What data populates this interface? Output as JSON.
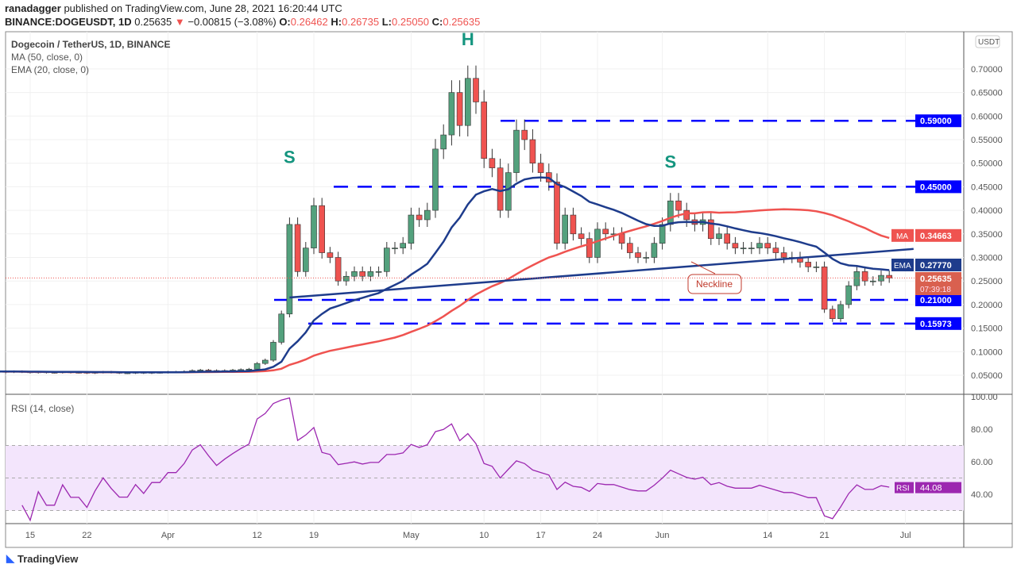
{
  "header": {
    "publisher": "ranadagger",
    "published_text": "published on TradingView.com, June 28, 2021 16:20:44 UTC",
    "symbol": "BINANCE:DOGEUSDT, 1D",
    "last": "0.25635",
    "change": "−0.00815 (−3.08%)",
    "o_label": "O:",
    "o": "0.26462",
    "h_label": "H:",
    "h": "0.26735",
    "l_label": "L:",
    "l": "0.25050",
    "c_label": "C:",
    "c": "0.25635"
  },
  "legend": {
    "title": "Dogecoin / TetherUS, 1D, BINANCE",
    "ma": "MA (50, close, 0)",
    "ema": "EMA (20, close, 0)",
    "rsi": "RSI (14, close)"
  },
  "footer": {
    "logo": "TradingView"
  },
  "colors": {
    "up": "#53a17d",
    "down": "#ef5350",
    "ma": "#ef5350",
    "ema": "#1e3c8c",
    "level": "#0000ff",
    "rsi": "#9c27b0",
    "rsi_band": "#f3e5fc"
  },
  "chart_data": {
    "type": "candlestick",
    "start_date": "2021-03-11",
    "closes": [
      0.058,
      0.057,
      0.058,
      0.057,
      0.056,
      0.057,
      0.056,
      0.056,
      0.057,
      0.056,
      0.056,
      0.055,
      0.056,
      0.057,
      0.056,
      0.055,
      0.055,
      0.056,
      0.055,
      0.056,
      0.056,
      0.057,
      0.057,
      0.058,
      0.06,
      0.061,
      0.06,
      0.059,
      0.06,
      0.061,
      0.062,
      0.063,
      0.075,
      0.082,
      0.12,
      0.18,
      0.37,
      0.27,
      0.32,
      0.41,
      0.31,
      0.3,
      0.25,
      0.26,
      0.27,
      0.26,
      0.27,
      0.27,
      0.32,
      0.32,
      0.33,
      0.39,
      0.38,
      0.4,
      0.53,
      0.56,
      0.65,
      0.58,
      0.68,
      0.63,
      0.51,
      0.49,
      0.4,
      0.48,
      0.57,
      0.55,
      0.5,
      0.48,
      0.46,
      0.33,
      0.39,
      0.35,
      0.34,
      0.3,
      0.36,
      0.35,
      0.35,
      0.33,
      0.31,
      0.3,
      0.3,
      0.33,
      0.37,
      0.42,
      0.4,
      0.38,
      0.37,
      0.38,
      0.34,
      0.35,
      0.33,
      0.32,
      0.32,
      0.32,
      0.33,
      0.32,
      0.31,
      0.3,
      0.3,
      0.29,
      0.28,
      0.28,
      0.19,
      0.17,
      0.2,
      0.24,
      0.27,
      0.25,
      0.25,
      0.262,
      0.25635
    ],
    "price_ticks": [
      "0.70000",
      "0.65000",
      "0.60000",
      "0.55000",
      "0.50000",
      "0.45000",
      "0.40000",
      "0.35000",
      "0.30000",
      "0.25000",
      "0.20000",
      "0.15000",
      "0.10000",
      "0.05000"
    ],
    "price_range": [
      0.0,
      0.75
    ],
    "currency": "USDT",
    "x_ticks": [
      {
        "label": "15",
        "date": "2021-03-15"
      },
      {
        "label": "22",
        "date": "2021-03-22"
      },
      {
        "label": "Apr",
        "date": "2021-04-01"
      },
      {
        "label": "12",
        "date": "2021-04-12"
      },
      {
        "label": "19",
        "date": "2021-04-19"
      },
      {
        "label": "May",
        "date": "2021-05-01"
      },
      {
        "label": "10",
        "date": "2021-05-10"
      },
      {
        "label": "17",
        "date": "2021-05-17"
      },
      {
        "label": "24",
        "date": "2021-05-24"
      },
      {
        "label": "Jun",
        "date": "2021-06-01"
      },
      {
        "label": "14",
        "date": "2021-06-14"
      },
      {
        "label": "21",
        "date": "2021-06-21"
      },
      {
        "label": "Jul",
        "date": "2021-07-01"
      }
    ],
    "levels": [
      {
        "value": 0.59,
        "label": "0.59000"
      },
      {
        "value": 0.45,
        "label": "0.45000"
      },
      {
        "value": 0.21,
        "label": "0.21000"
      },
      {
        "value": 0.15973,
        "label": "0.15973"
      }
    ],
    "ma_label": "MA",
    "ma_value": "0.34663",
    "ema_label": "EMA",
    "ema_value": "0.27770",
    "last_price": "0.25635",
    "countdown": "07:39:18",
    "neckline": {
      "label": "Neckline",
      "from": {
        "date": "2021-04-16",
        "value": 0.215
      },
      "to": {
        "date": "2021-07-02",
        "value": 0.318
      }
    },
    "annotations": [
      {
        "text": "S",
        "date": "2021-04-16",
        "value": 0.5
      },
      {
        "text": "H",
        "date": "2021-05-08",
        "value": 0.75
      },
      {
        "text": "S",
        "date": "2021-06-02",
        "value": 0.49
      }
    ],
    "rsi_ticks": [
      "100.00",
      "80.00",
      "60.00",
      "40.00"
    ],
    "rsi_label": "RSI",
    "rsi_value": "44.08",
    "rsi_bands": [
      70,
      30
    ]
  }
}
